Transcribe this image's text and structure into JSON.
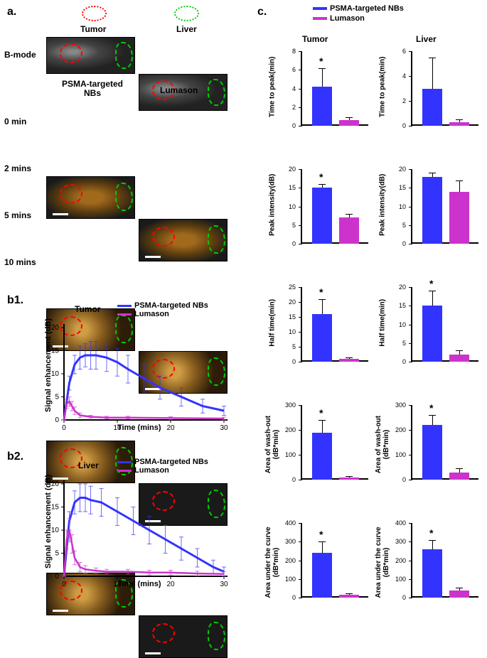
{
  "colors": {
    "psma": "#3333ff",
    "lumason": "#cc33cc",
    "tumor_roi": "#ff0000",
    "liver_roi": "#00cc00",
    "axis": "#000000",
    "bg": "#ffffff"
  },
  "legend": {
    "psma": "PSMA-targeted NBs",
    "lumason": "Lumason"
  },
  "panel_a": {
    "label": "a.",
    "tumor_header": "Tumor",
    "liver_header": "Liver",
    "bmode_label": "B-mode",
    "col1_header": "PSMA-targeted\nNBs",
    "col2_header": "Lumason",
    "timepoints": [
      "0 min",
      "2 mins",
      "5 mins",
      "10 mins"
    ]
  },
  "panel_b1": {
    "label": "b1.",
    "title": "Tumor",
    "xlabel": "Time (mins)",
    "ylabel": "Signal enhancement (dB)",
    "xlim": [
      0,
      30
    ],
    "ylim": [
      0,
      20
    ],
    "xticks": [
      0,
      10,
      20,
      30
    ],
    "yticks": [
      0,
      5,
      10,
      15,
      20
    ],
    "psma": {
      "x": [
        0,
        1,
        2,
        3,
        4,
        5,
        6,
        8,
        10,
        12,
        15,
        18,
        22,
        26,
        30
      ],
      "y": [
        0,
        8,
        12,
        13.5,
        14,
        14,
        14,
        13.5,
        12.5,
        11,
        9,
        7,
        5,
        3,
        2
      ],
      "err": [
        0,
        1.5,
        2,
        2.5,
        2.5,
        3,
        3,
        3,
        3,
        3,
        3,
        2.5,
        2,
        1.5,
        1
      ]
    },
    "lumason": {
      "x": [
        0,
        0.5,
        1,
        1.5,
        2,
        3,
        5,
        8,
        12,
        20,
        30
      ],
      "y": [
        0,
        3.5,
        4,
        3,
        2,
        1,
        0.7,
        0.5,
        0.5,
        0.4,
        0.3
      ],
      "err": [
        0,
        1,
        1,
        1,
        0.8,
        0.5,
        0.3,
        0.3,
        0.3,
        0.3,
        0.3
      ]
    }
  },
  "panel_b2": {
    "label": "b2.",
    "title": "Liver",
    "xlabel": "Time (mins)",
    "ylabel": "Signal enhancement (dB)",
    "xlim": [
      0,
      30
    ],
    "ylim": [
      0,
      20
    ],
    "xticks": [
      0,
      10,
      20,
      30
    ],
    "yticks": [
      0,
      5,
      10,
      15,
      20
    ],
    "psma": {
      "x": [
        0,
        1,
        2,
        3,
        4,
        5,
        7,
        10,
        13,
        16,
        19,
        22,
        25,
        28,
        30
      ],
      "y": [
        0,
        12,
        16,
        17,
        17,
        16.5,
        16,
        14,
        12,
        10,
        8,
        6,
        4,
        2,
        1
      ],
      "err": [
        0,
        2,
        2.5,
        3,
        3,
        3,
        3,
        3,
        3,
        3,
        3,
        2.5,
        2,
        1.5,
        1
      ]
    },
    "lumason": {
      "x": [
        0,
        0.5,
        1,
        1.5,
        2,
        3,
        4,
        6,
        8,
        12,
        16,
        20,
        25,
        30
      ],
      "y": [
        0,
        8,
        10,
        7,
        4,
        2,
        1.5,
        1.2,
        1,
        1,
        0.8,
        0.8,
        0.6,
        0.5
      ],
      "err": [
        0,
        2,
        2.5,
        2,
        1.5,
        1,
        0.8,
        0.6,
        0.5,
        0.5,
        0.5,
        0.5,
        0.5,
        0.5
      ]
    }
  },
  "panel_c": {
    "label": "c.",
    "tumor_header": "Tumor",
    "liver_header": "Liver",
    "metrics": [
      {
        "name": "Time to peak(min)",
        "tumor": {
          "psma": 4.2,
          "psma_err": 2,
          "lumason": 0.6,
          "lumason_err": 0.3,
          "ymax": 8,
          "yticks": [
            0,
            2,
            4,
            6,
            8
          ],
          "sig": true
        },
        "liver": {
          "psma": 3,
          "psma_err": 2.5,
          "lumason": 0.3,
          "lumason_err": 0.2,
          "ymax": 6,
          "yticks": [
            0,
            2,
            4,
            6
          ],
          "sig": false
        }
      },
      {
        "name": "Peak intensity(dB)",
        "tumor": {
          "psma": 15,
          "psma_err": 1,
          "lumason": 7,
          "lumason_err": 1,
          "ymax": 20,
          "yticks": [
            0,
            5,
            10,
            15,
            20
          ],
          "sig": true
        },
        "liver": {
          "psma": 18,
          "psma_err": 1,
          "lumason": 14,
          "lumason_err": 3,
          "ymax": 20,
          "yticks": [
            0,
            5,
            10,
            15,
            20
          ],
          "sig": false
        }
      },
      {
        "name": "Half time(min)",
        "tumor": {
          "psma": 16,
          "psma_err": 5,
          "lumason": 1,
          "lumason_err": 0.5,
          "ymax": 25,
          "yticks": [
            0,
            5,
            10,
            15,
            20,
            25
          ],
          "sig": true
        },
        "liver": {
          "psma": 15,
          "psma_err": 4,
          "lumason": 2,
          "lumason_err": 1,
          "ymax": 20,
          "yticks": [
            0,
            5,
            10,
            15,
            20
          ],
          "sig": true
        }
      },
      {
        "name": "Area of wash-out\n(dB*min)",
        "tumor": {
          "psma": 190,
          "psma_err": 50,
          "lumason": 10,
          "lumason_err": 5,
          "ymax": 300,
          "yticks": [
            0,
            100,
            200,
            300
          ],
          "sig": true
        },
        "liver": {
          "psma": 220,
          "psma_err": 40,
          "lumason": 30,
          "lumason_err": 15,
          "ymax": 300,
          "yticks": [
            0,
            100,
            200,
            300
          ],
          "sig": true
        }
      },
      {
        "name": "Area under the curve\n(dB*min)",
        "tumor": {
          "psma": 240,
          "psma_err": 60,
          "lumason": 15,
          "lumason_err": 8,
          "ymax": 400,
          "yticks": [
            0,
            100,
            200,
            300,
            400
          ],
          "sig": true
        },
        "liver": {
          "psma": 260,
          "psma_err": 50,
          "lumason": 40,
          "lumason_err": 15,
          "ymax": 400,
          "yticks": [
            0,
            100,
            200,
            300,
            400
          ],
          "sig": true
        }
      }
    ]
  }
}
